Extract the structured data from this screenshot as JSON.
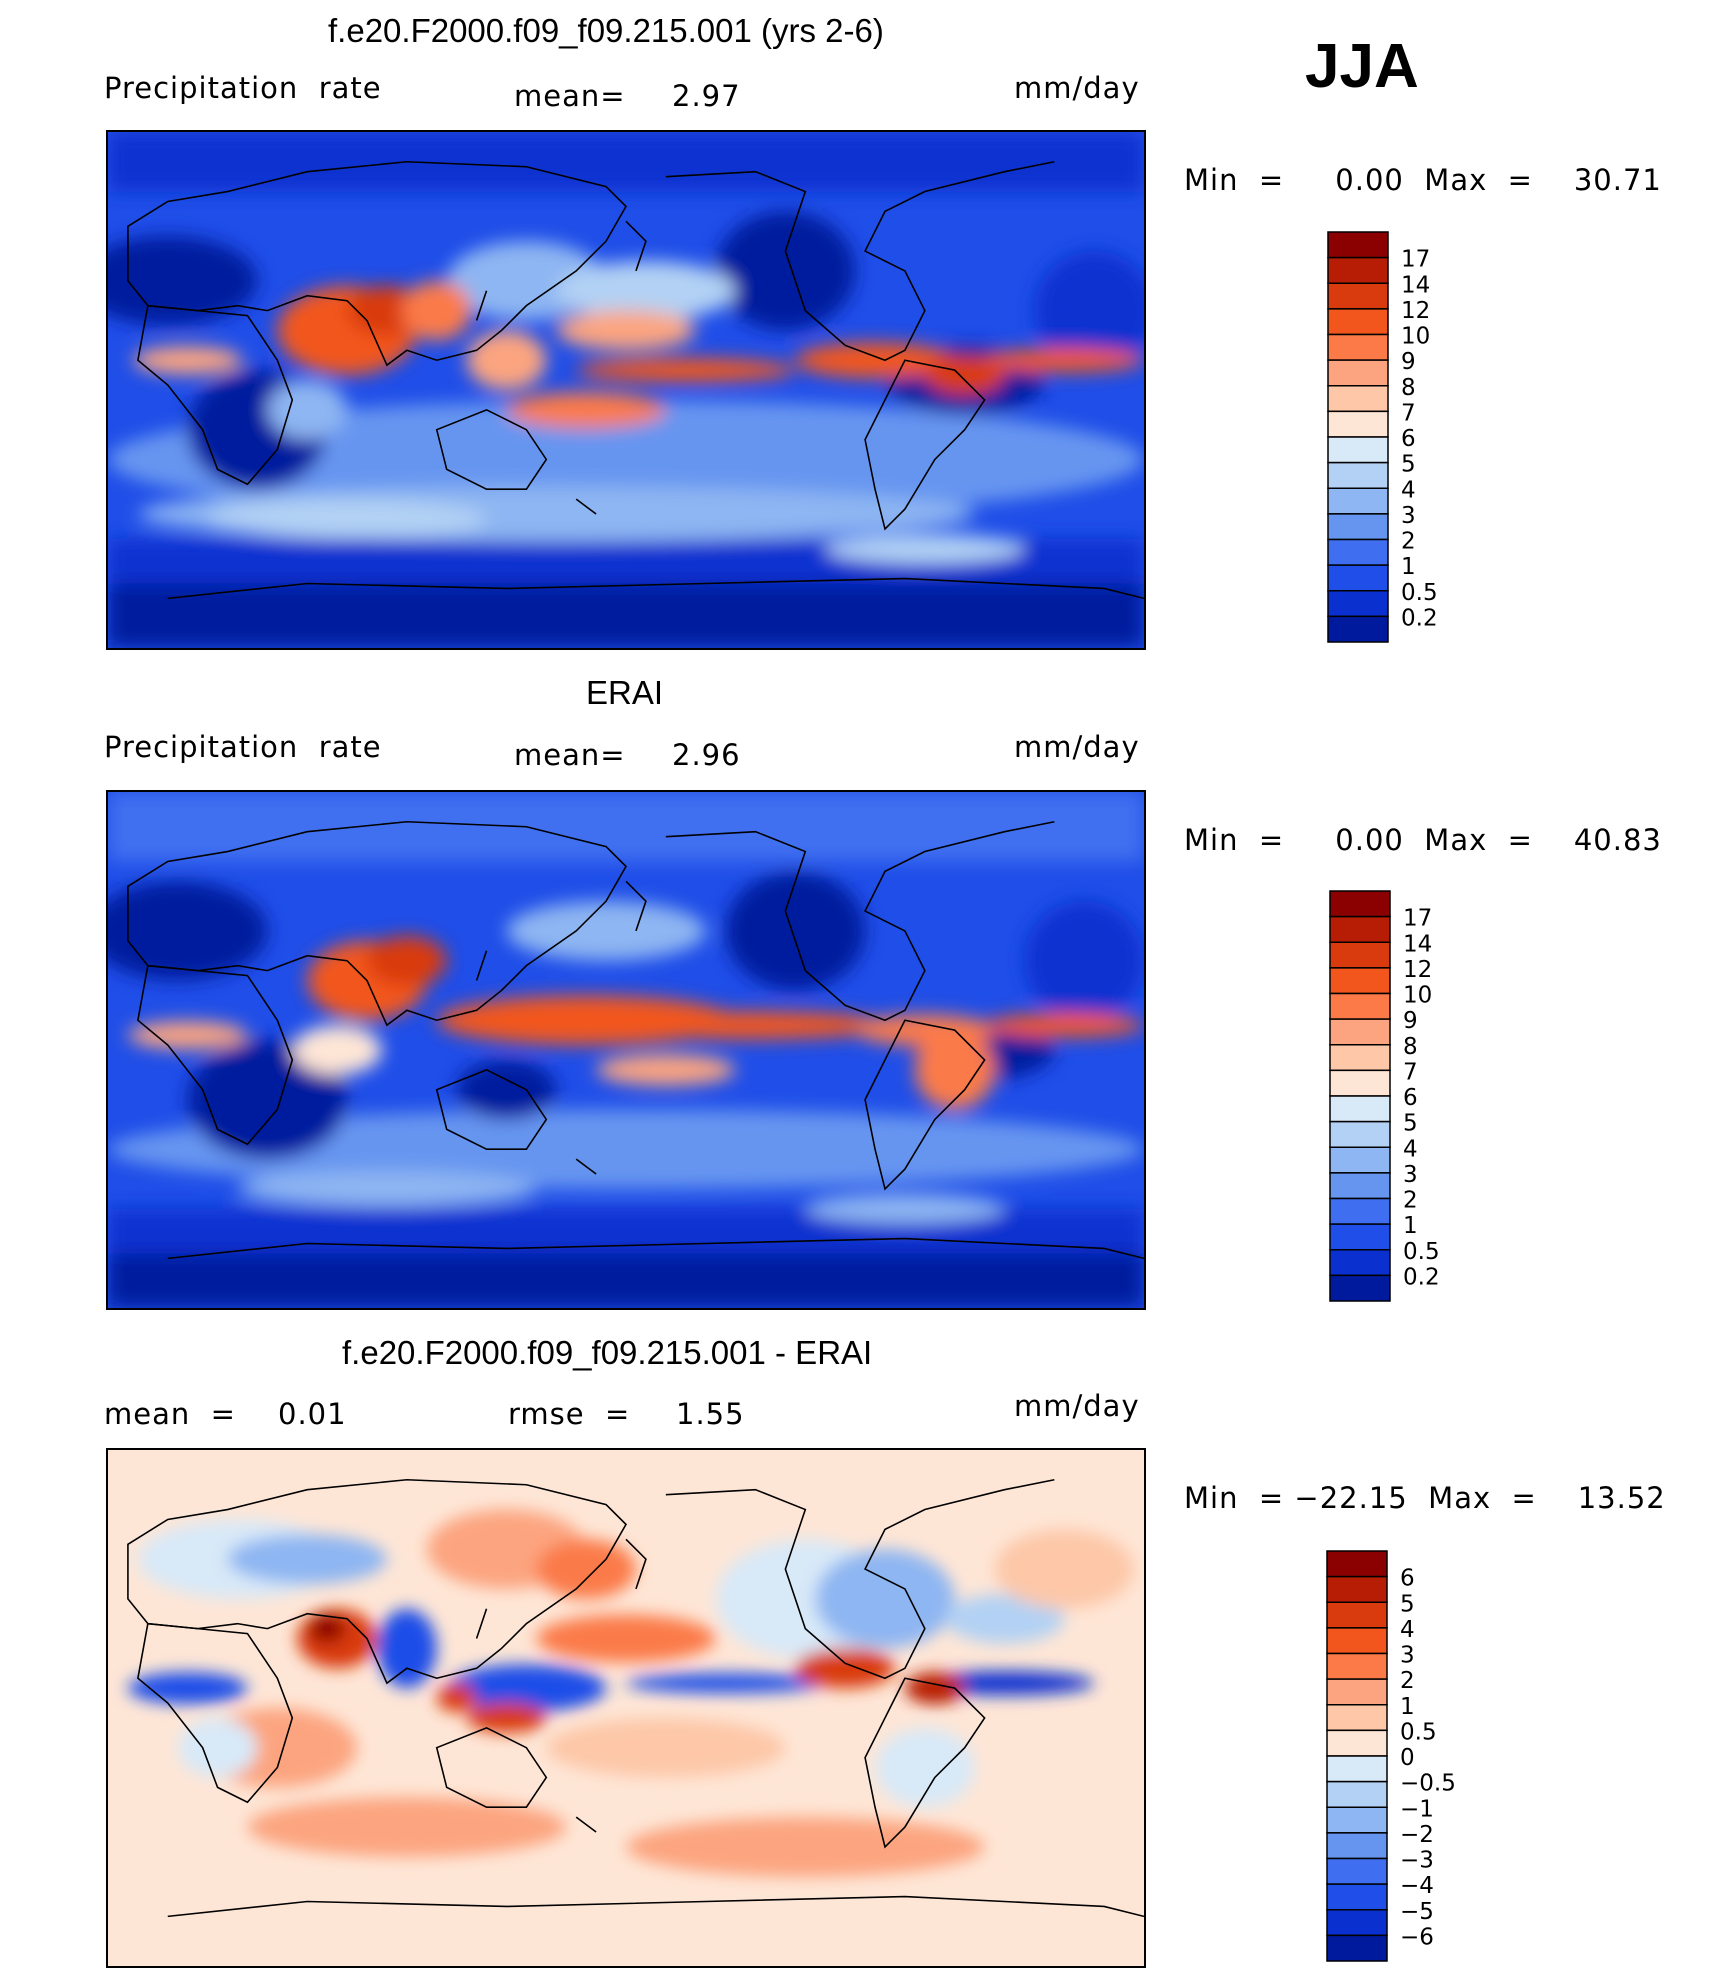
{
  "season": "JJA",
  "panels": [
    {
      "title": "f.e20.F2000.f09_f09.215.001 (yrs 2-6)",
      "left_label": "Precipitation  rate",
      "center_label": "mean=",
      "center_value": "2.97",
      "units": "mm/day",
      "minmax": "Min  =     0.00  Max  =    30.71",
      "colorbar_levels": [
        "17",
        "14",
        "12",
        "10",
        "9",
        "8",
        "7",
        "6",
        "5",
        "4",
        "3",
        "2",
        "1",
        "0.5",
        "0.2"
      ],
      "colorbar_colors": [
        "#8b0000",
        "#b71c04",
        "#d93a0e",
        "#f2561d",
        "#fb7a48",
        "#fca47f",
        "#fdc7a8",
        "#fee6d6",
        "#d8e9f8",
        "#b2d1f4",
        "#8eb6f2",
        "#6695f0",
        "#3f6ff0",
        "#1f4ee8",
        "#0a31d0",
        "#001a9e"
      ]
    },
    {
      "title": "ERAI",
      "left_label": "Precipitation  rate",
      "center_label": "mean=",
      "center_value": "2.96",
      "units": "mm/day",
      "minmax": "Min  =     0.00  Max  =    40.83",
      "colorbar_levels": [
        "17",
        "14",
        "12",
        "10",
        "9",
        "8",
        "7",
        "6",
        "5",
        "4",
        "3",
        "2",
        "1",
        "0.5",
        "0.2"
      ],
      "colorbar_colors": [
        "#8b0000",
        "#b71c04",
        "#d93a0e",
        "#f2561d",
        "#fb7a48",
        "#fca47f",
        "#fdc7a8",
        "#fee6d6",
        "#d8e9f8",
        "#b2d1f4",
        "#8eb6f2",
        "#6695f0",
        "#3f6ff0",
        "#1f4ee8",
        "#0a31d0",
        "#001a9e"
      ]
    },
    {
      "title": "f.e20.F2000.f09_f09.215.001 - ERAI",
      "left_label": "mean  =",
      "left_value": "0.01",
      "center_label": "rmse  =",
      "center_value": "1.55",
      "units": "mm/day",
      "minmax": "Min  = −22.15  Max  =    13.52",
      "colorbar_levels": [
        "6",
        "5",
        "4",
        "3",
        "2",
        "1",
        "0.5",
        "0",
        "−0.5",
        "−1",
        "−2",
        "−3",
        "−4",
        "−5",
        "−6"
      ],
      "colorbar_colors": [
        "#8b0000",
        "#b71c04",
        "#d93a0e",
        "#f2561d",
        "#fb7a48",
        "#fca47f",
        "#fdc7a8",
        "#fee6d6",
        "#d8e9f8",
        "#b2d1f4",
        "#8eb6f2",
        "#6695f0",
        "#3f6ff0",
        "#1f4ee8",
        "#0a31d0",
        "#001a9e"
      ]
    }
  ]
}
